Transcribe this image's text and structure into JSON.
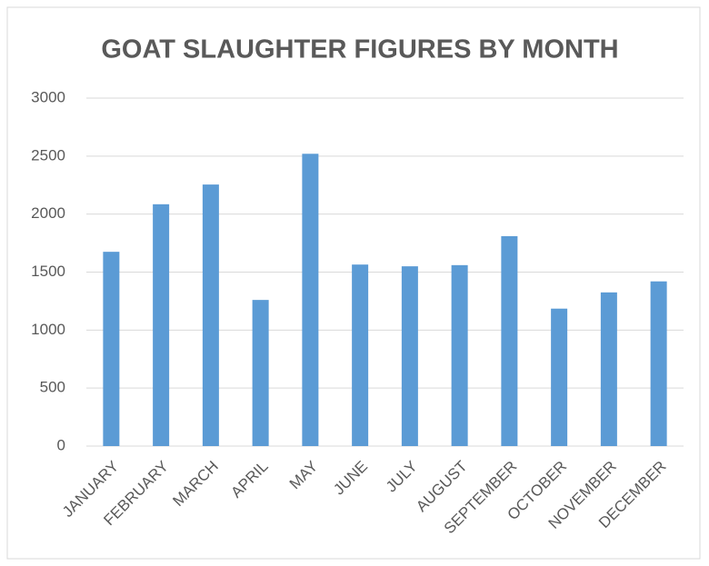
{
  "chart_data": {
    "type": "bar",
    "title": "GOAT SLAUGHTER FIGURES BY MONTH",
    "categories": [
      "JANUARY",
      "FEBRUARY",
      "MARCH",
      "APRIL",
      "MAY",
      "JUNE",
      "JULY",
      "AUGUST",
      "SEPTEMBER",
      "OCTOBER",
      "NOVEMBER",
      "DECEMBER"
    ],
    "values": [
      1675,
      2085,
      2255,
      1260,
      2520,
      1565,
      1550,
      1560,
      1810,
      1185,
      1325,
      1420
    ],
    "color": "#5b9bd5",
    "ylim": [
      0,
      3000
    ],
    "yticks": [
      0,
      500,
      1000,
      1500,
      2000,
      2500,
      3000
    ],
    "grid": true
  }
}
